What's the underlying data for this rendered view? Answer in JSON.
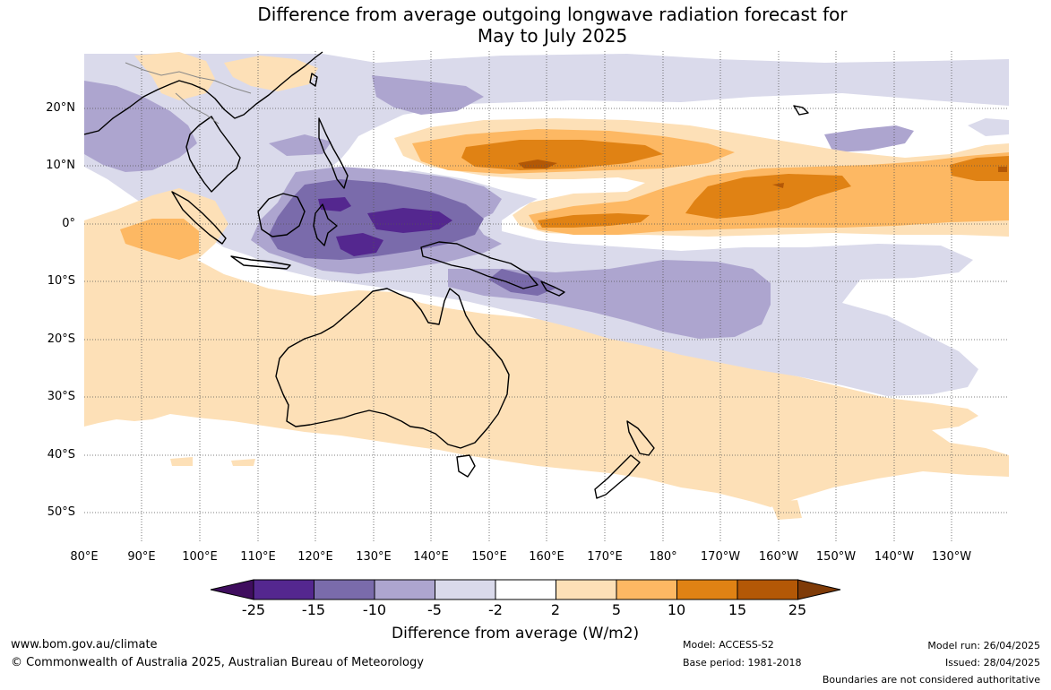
{
  "title": {
    "line1": "Difference from average outgoing longwave radiation forecast for",
    "line2": "May to July 2025"
  },
  "map": {
    "latitude_labels": [
      "20°N",
      "10°N",
      "0°",
      "10°S",
      "20°S",
      "30°S",
      "40°S",
      "50°S"
    ],
    "longitude_labels": [
      "80°E",
      "90°E",
      "100°E",
      "110°E",
      "120°E",
      "130°E",
      "140°E",
      "150°E",
      "160°E",
      "170°E",
      "180°",
      "170°W",
      "160°W",
      "150°W",
      "140°W",
      "130°W"
    ],
    "colors": {
      "le_-25": "#3f0d5e",
      "-25_-15": "#54278f",
      "-15_-10": "#7a6bab",
      "-10_-5": "#ada5cf",
      "-5_-2": "#dadaeb",
      "-2_2": "#ffffff",
      "2_5": "#fde0b7",
      "5_10": "#fdb863",
      "10_15": "#e08214",
      "15_25": "#b35806",
      "ge_25": "#7f3b08"
    }
  },
  "colorbar": {
    "ticks": [
      "-25",
      "-15",
      "-10",
      "-5",
      "-2",
      "2",
      "5",
      "10",
      "15",
      "25"
    ],
    "label": "Difference from average (W/m2)"
  },
  "footer": {
    "website": "www.bom.gov.au/climate",
    "copyright": "© Commonwealth of Australia 2025, Australian Bureau of Meteorology",
    "model": "Model: ACCESS-S2",
    "base_period": "Base period: 1981-2018",
    "model_run": "Model run: 26/04/2025",
    "issued": "Issued: 28/04/2025",
    "disclaimer": "Boundaries are not considered authoritative"
  }
}
